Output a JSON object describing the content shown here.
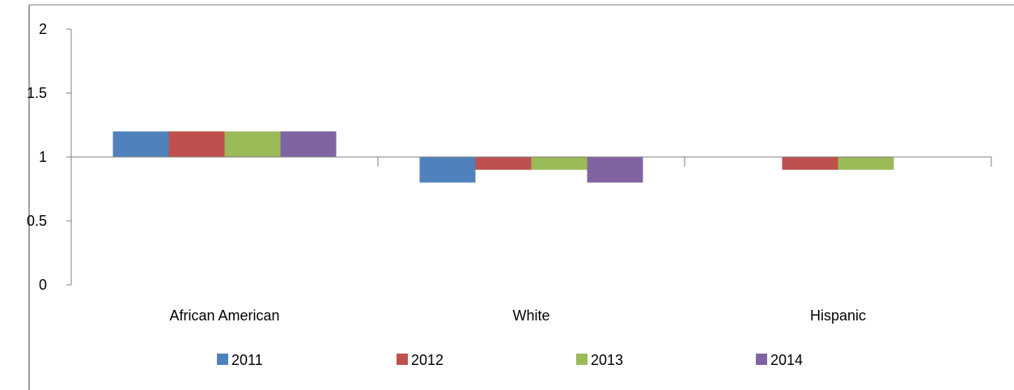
{
  "chart_data": {
    "type": "bar",
    "title": "",
    "xlabel": "",
    "ylabel": "",
    "categories": [
      "African American",
      "White",
      "Hispanic"
    ],
    "series": [
      {
        "name": "2011",
        "values": [
          1.2,
          0.8,
          1.0
        ],
        "color": "#4F81BD"
      },
      {
        "name": "2012",
        "values": [
          1.2,
          0.9,
          0.9
        ],
        "color": "#C0504D"
      },
      {
        "name": "2013",
        "values": [
          1.2,
          0.9,
          0.9
        ],
        "color": "#9BBB59"
      },
      {
        "name": "2014",
        "values": [
          1.2,
          0.8,
          1.0
        ],
        "color": "#8064A2"
      }
    ],
    "baseline": 1,
    "ylim": [
      0,
      2
    ],
    "yticks": [
      "0",
      "0.5",
      "1",
      "1.5",
      "2"
    ],
    "grid": false,
    "legend_position": "bottom"
  },
  "colors": {
    "axis": "#7F7F7F",
    "border": "#7F7F7F"
  }
}
